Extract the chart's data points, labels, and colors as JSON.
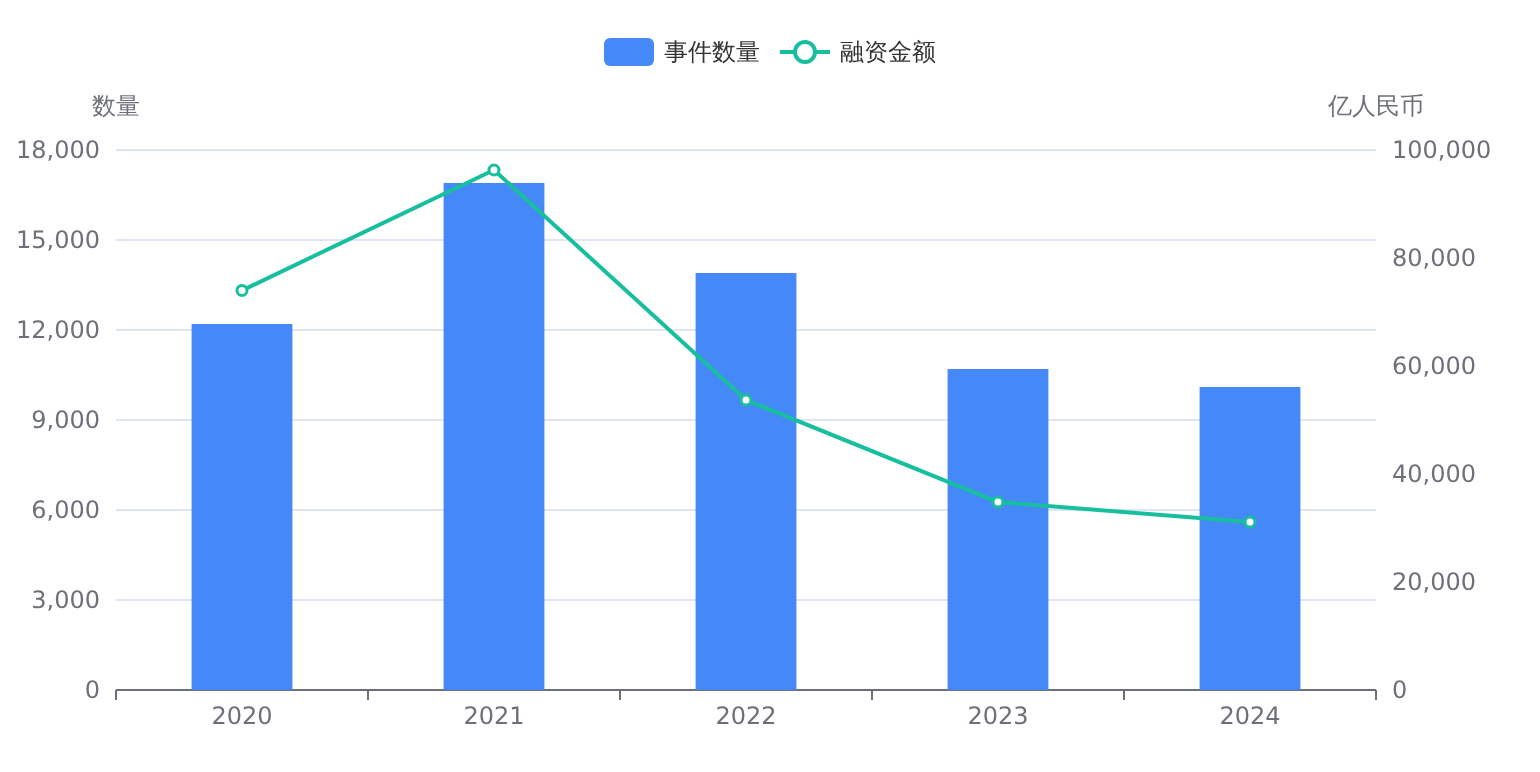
{
  "chart_data": {
    "type": "bar",
    "ylabel": "数量",
    "y2label": "亿人民币",
    "categories": [
      "2020",
      "2021",
      "2022",
      "2023",
      "2024"
    ],
    "series": [
      {
        "name": "事件数量",
        "color": "#4589f9",
        "values": [
          12200,
          16900,
          13900,
          10700,
          10100
        ]
      },
      {
        "name": "融资金额",
        "type": "line",
        "axis": "y2",
        "color": "#17bf9e",
        "marker": "circle",
        "values": [
          74000,
          96300,
          53700,
          34800,
          31100
        ]
      }
    ],
    "ylim": [
      0,
      18000
    ],
    "yticks": [
      {
        "value": 0,
        "label": "0"
      },
      {
        "value": 3000,
        "label": "3,000"
      },
      {
        "value": 6000,
        "label": "6,000"
      },
      {
        "value": 9000,
        "label": "9,000"
      },
      {
        "value": 12000,
        "label": "12,000"
      },
      {
        "value": 15000,
        "label": "15,000"
      },
      {
        "value": 18000,
        "label": "18,000"
      }
    ],
    "y2lim": [
      0,
      100000
    ],
    "y2ticks": [
      {
        "value": 0,
        "label": "0"
      },
      {
        "value": 20000,
        "label": "20,000"
      },
      {
        "value": 40000,
        "label": "40,000"
      },
      {
        "value": 60000,
        "label": "60,000"
      },
      {
        "value": 80000,
        "label": "80,000"
      },
      {
        "value": 100000,
        "label": "100,000"
      }
    ],
    "grid": "y",
    "legend": "top"
  }
}
